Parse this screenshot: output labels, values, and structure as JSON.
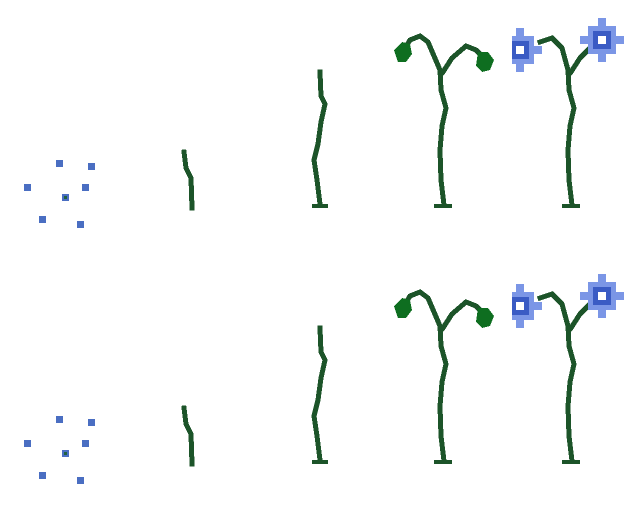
{
  "sprite_sheet": {
    "growth_stages": [
      {
        "stage": "seeds"
      },
      {
        "stage": "sprout"
      },
      {
        "stage": "stem"
      },
      {
        "stage": "budding"
      },
      {
        "stage": "flowering"
      }
    ],
    "colors": {
      "stem": "#1c5429",
      "leaf": "#0e6e20",
      "seed": "#4a6ec2",
      "seed_core": "#1f6140",
      "petal": "#7b96e6",
      "flower_center": "#3a5bc4",
      "flower_eye": "#ffffff",
      "background": "#ffffff"
    }
  }
}
